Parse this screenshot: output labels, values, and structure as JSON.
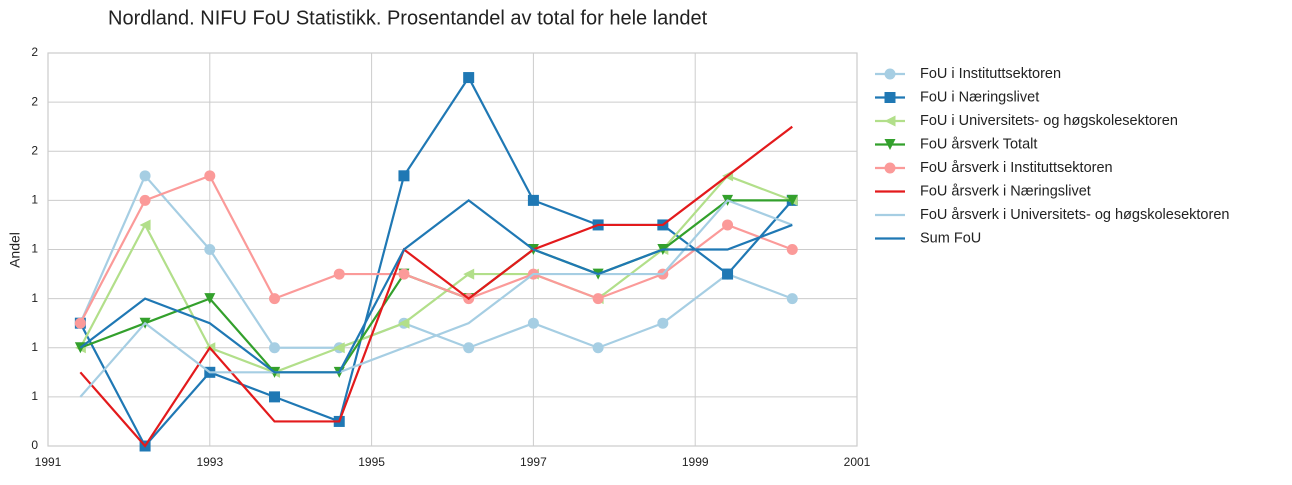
{
  "chart_data": {
    "type": "line",
    "title": "Nordland. NIFU FoU Statistikk. Prosentandel av total for hele landet",
    "y_label": "Andel",
    "x": [
      1991.4,
      1992.2,
      1993.0,
      1993.8,
      1994.6,
      1995.4,
      1996.2,
      1997.0,
      1997.8,
      1998.6,
      1999.4,
      2000.2
    ],
    "xlim": [
      1991,
      2001
    ],
    "xticks": [
      1991,
      1993,
      1995,
      1997,
      1999,
      2001
    ],
    "ylim": [
      0.4,
      2.0
    ],
    "yticks": [
      {
        "value": 0.4,
        "label": "0"
      },
      {
        "value": 0.6,
        "label": "1"
      },
      {
        "value": 0.8,
        "label": "1"
      },
      {
        "value": 1.0,
        "label": "1"
      },
      {
        "value": 1.2,
        "label": "1"
      },
      {
        "value": 1.4,
        "label": "1"
      },
      {
        "value": 1.6,
        "label": "2"
      },
      {
        "value": 1.8,
        "label": "2"
      },
      {
        "value": 2.0,
        "label": "2"
      }
    ],
    "grid": true,
    "legend": "outside right",
    "series": [
      {
        "name": "FoU i Instituttsektoren",
        "color": "#a6cee3",
        "marker": "o",
        "values": [
          0.9,
          1.5,
          1.2,
          0.8,
          0.8,
          0.9,
          0.8,
          0.9,
          0.8,
          0.9,
          1.1,
          1.0
        ]
      },
      {
        "name": "FoU i Næringslivet",
        "color": "#1f78b4",
        "marker": "s",
        "values": [
          0.9,
          0.4,
          0.7,
          0.6,
          0.5,
          1.5,
          1.9,
          1.4,
          1.3,
          1.3,
          1.1,
          1.4
        ]
      },
      {
        "name": "FoU i Universitets- og høgskolesektoren",
        "color": "#b2df8a",
        "marker": "<",
        "values": [
          0.8,
          1.3,
          0.8,
          0.7,
          0.8,
          0.9,
          1.1,
          1.1,
          1.0,
          1.2,
          1.5,
          1.4
        ]
      },
      {
        "name": "FoU årsverk Totalt",
        "color": "#33a02c",
        "marker": "v",
        "values": [
          0.8,
          0.9,
          1.0,
          0.7,
          0.7,
          1.1,
          1.0,
          1.2,
          1.1,
          1.2,
          1.4,
          1.4
        ]
      },
      {
        "name": "FoU årsverk i Instituttsektoren",
        "color": "#fb9a99",
        "marker": "o",
        "values": [
          0.9,
          1.4,
          1.5,
          1.0,
          1.1,
          1.1,
          1.0,
          1.1,
          1.0,
          1.1,
          1.3,
          1.2
        ]
      },
      {
        "name": "FoU årsverk i Næringslivet",
        "color": "#e31a1c",
        "values": [
          0.7,
          0.4,
          0.8,
          0.5,
          0.5,
          1.2,
          1.0,
          1.2,
          1.3,
          1.3,
          1.5,
          1.7
        ]
      },
      {
        "name": "FoU årsverk i Universitets- og høgskolesektoren",
        "color": "#a6cee3",
        "values": [
          0.6,
          0.9,
          0.7,
          0.7,
          0.7,
          0.8,
          0.9,
          1.1,
          1.1,
          1.1,
          1.4,
          1.3
        ]
      },
      {
        "name": "Sum FoU",
        "color": "#1f78b4",
        "values": [
          0.8,
          1.0,
          0.9,
          0.7,
          0.7,
          1.2,
          1.4,
          1.2,
          1.1,
          1.2,
          1.2,
          1.3
        ]
      }
    ]
  }
}
